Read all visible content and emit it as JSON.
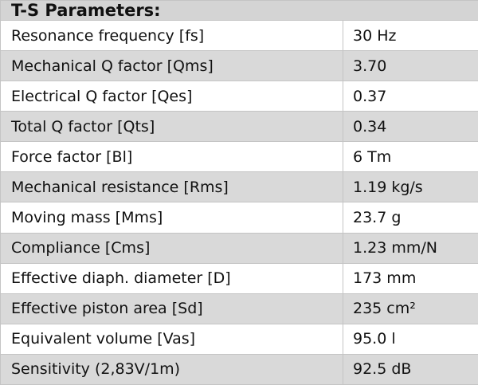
{
  "header": {
    "title": "T-S Parameters:"
  },
  "table": {
    "rows": [
      [
        "Resonance frequency [fs]",
        "30 Hz"
      ],
      [
        "Mechanical Q factor [Qms]",
        "3.70"
      ],
      [
        "Electrical Q factor [Qes]",
        "0.37"
      ],
      [
        "Total Q factor [Qts]",
        "0.34"
      ],
      [
        "Force factor [Bl]",
        "6 Tm"
      ],
      [
        "Mechanical resistance [Rms]",
        "1.19 kg/s"
      ],
      [
        "Moving mass [Mms]",
        "23.7 g"
      ],
      [
        "Compliance [Cms]",
        "1.23 mm/N"
      ],
      [
        "Effective diaph. diameter [D]",
        "173 mm"
      ],
      [
        "Effective piston area [Sd]",
        "235 cm²"
      ],
      [
        "Equivalent volume [Vas]",
        "95.0 l"
      ],
      [
        "Sensitivity (2,83V/1m)",
        "92.5 dB"
      ]
    ]
  }
}
